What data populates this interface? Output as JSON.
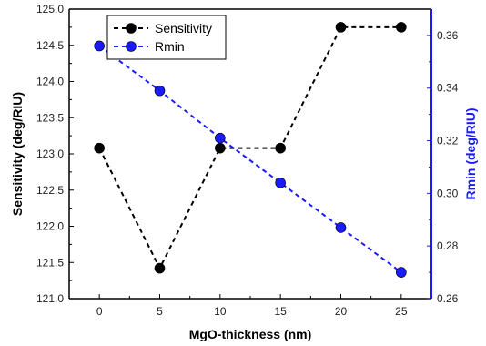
{
  "chart_data": {
    "type": "line",
    "x_label": "MgO-thickness (nm)",
    "y_left_label": "Sensitivity (deg/RIU)",
    "y_right_label": "Rmin (deg/RIU)",
    "x": [
      0,
      5,
      10,
      15,
      20,
      25
    ],
    "x_ticks": [
      "0",
      "5",
      "10",
      "15",
      "20",
      "25"
    ],
    "xlim": [
      -2.5,
      27.5
    ],
    "y_left_lim": [
      121.0,
      125.0
    ],
    "y_left_ticks": [
      "121.0",
      "121.5",
      "122.0",
      "122.5",
      "123.0",
      "123.5",
      "124.0",
      "124.5",
      "125.0"
    ],
    "y_right_lim": [
      0.26,
      0.37
    ],
    "y_right_ticks": [
      "0.26",
      "0.28",
      "0.30",
      "0.32",
      "0.34",
      "0.36"
    ],
    "series": [
      {
        "name": "Sensitivity",
        "axis": "left",
        "color": "#000000",
        "values": [
          123.08,
          121.42,
          123.08,
          123.08,
          124.75,
          124.75
        ]
      },
      {
        "name": "Rmin",
        "axis": "right",
        "color": "#1a1aff",
        "values": [
          0.356,
          0.339,
          0.321,
          0.304,
          0.287,
          0.27
        ]
      }
    ],
    "legend_position": "top-left",
    "grid": false
  }
}
